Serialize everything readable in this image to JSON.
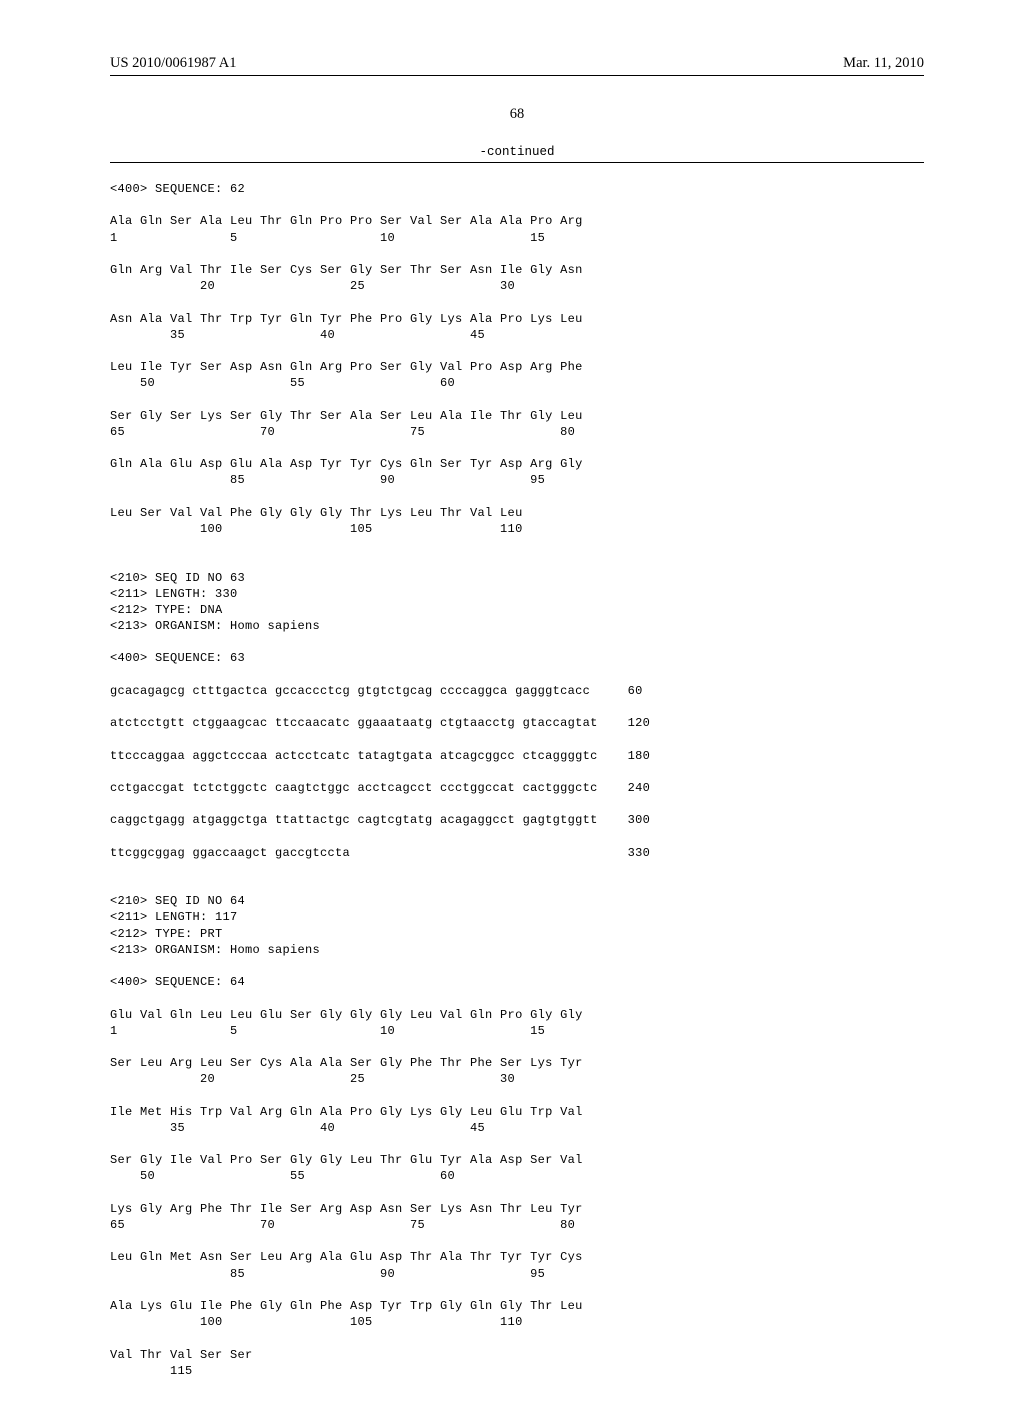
{
  "header": {
    "pub_id": "US 2010/0061987 A1",
    "pub_date": "Mar. 11, 2010"
  },
  "page_number": "68",
  "continued_label": "-continued",
  "seq_text": "<400> SEQUENCE: 62\n\nAla Gln Ser Ala Leu Thr Gln Pro Pro Ser Val Ser Ala Ala Pro Arg\n1               5                   10                  15\n\nGln Arg Val Thr Ile Ser Cys Ser Gly Ser Thr Ser Asn Ile Gly Asn\n            20                  25                  30\n\nAsn Ala Val Thr Trp Tyr Gln Tyr Phe Pro Gly Lys Ala Pro Lys Leu\n        35                  40                  45\n\nLeu Ile Tyr Ser Asp Asn Gln Arg Pro Ser Gly Val Pro Asp Arg Phe\n    50                  55                  60\n\nSer Gly Ser Lys Ser Gly Thr Ser Ala Ser Leu Ala Ile Thr Gly Leu\n65                  70                  75                  80\n\nGln Ala Glu Asp Glu Ala Asp Tyr Tyr Cys Gln Ser Tyr Asp Arg Gly\n                85                  90                  95\n\nLeu Ser Val Val Phe Gly Gly Gly Thr Lys Leu Thr Val Leu\n            100                 105                 110\n\n\n<210> SEQ ID NO 63\n<211> LENGTH: 330\n<212> TYPE: DNA\n<213> ORGANISM: Homo sapiens\n\n<400> SEQUENCE: 63\n\ngcacagagcg ctttgactca gccaccctcg gtgtctgcag ccccaggca gagggtcacc     60\n\natctcctgtt ctggaagcac ttccaacatc ggaaataatg ctgtaacctg gtaccagtat    120\n\nttcccaggaa aggctcccaa actcctcatc tatagtgata atcagcggcc ctcaggggtc    180\n\ncctgaccgat tctctggctc caagtctggc acctcagcct ccctggccat cactgggctc    240\n\ncaggctgagg atgaggctga ttattactgc cagtcgtatg acagaggcct gagtgtggtt    300\n\nttcggcggag ggaccaagct gaccgtccta                                     330\n\n\n<210> SEQ ID NO 64\n<211> LENGTH: 117\n<212> TYPE: PRT\n<213> ORGANISM: Homo sapiens\n\n<400> SEQUENCE: 64\n\nGlu Val Gln Leu Leu Glu Ser Gly Gly Gly Leu Val Gln Pro Gly Gly\n1               5                   10                  15\n\nSer Leu Arg Leu Ser Cys Ala Ala Ser Gly Phe Thr Phe Ser Lys Tyr\n            20                  25                  30\n\nIle Met His Trp Val Arg Gln Ala Pro Gly Lys Gly Leu Glu Trp Val\n        35                  40                  45\n\nSer Gly Ile Val Pro Ser Gly Gly Leu Thr Glu Tyr Ala Asp Ser Val\n    50                  55                  60\n\nLys Gly Arg Phe Thr Ile Ser Arg Asp Asn Ser Lys Asn Thr Leu Tyr\n65                  70                  75                  80\n\nLeu Gln Met Asn Ser Leu Arg Ala Glu Asp Thr Ala Thr Tyr Tyr Cys\n                85                  90                  95\n\nAla Lys Glu Ile Phe Gly Gln Phe Asp Tyr Trp Gly Gln Gly Thr Leu\n            100                 105                 110\n\nVal Thr Val Ser Ser\n        115"
}
